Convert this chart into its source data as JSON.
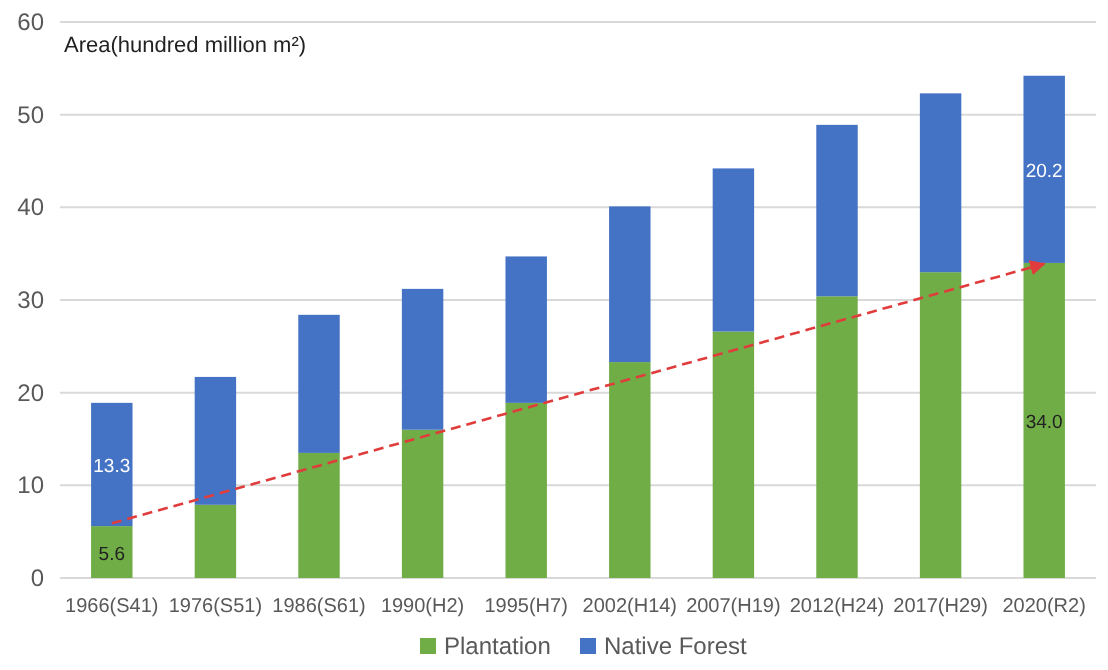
{
  "chart_data": {
    "type": "bar",
    "stacked": true,
    "ylabel": "Area(hundred million m²)",
    "categories": [
      "1966(S41)",
      "1976(S51)",
      "1986(S61)",
      "1990(H2)",
      "1995(H7)",
      "2002(H14)",
      "2007(H19)",
      "2012(H24)",
      "2017(H29)",
      "2020(R2)"
    ],
    "series": [
      {
        "name": "Plantation",
        "color": "#70ad47",
        "values": [
          5.6,
          7.9,
          13.5,
          16.0,
          18.9,
          23.3,
          26.6,
          30.4,
          33.0,
          34.0
        ],
        "value_labels": [
          "5.6",
          null,
          null,
          null,
          null,
          null,
          null,
          null,
          null,
          "34.0"
        ]
      },
      {
        "name": "Native Forest",
        "color": "#4472c4",
        "values": [
          13.3,
          13.8,
          14.9,
          15.2,
          15.8,
          16.8,
          17.6,
          18.5,
          19.3,
          20.2
        ],
        "value_labels": [
          "13.3",
          null,
          null,
          null,
          null,
          null,
          null,
          null,
          null,
          "20.2"
        ]
      },
      {
        "type": "line",
        "color": "#e03c3c",
        "line_style": "dashed",
        "values": [
          5.9,
          null,
          null,
          null,
          null,
          null,
          null,
          null,
          null,
          33.9
        ]
      }
    ],
    "ylim": [
      0,
      60
    ],
    "yticks": [
      0,
      10,
      20,
      30,
      40,
      50,
      60
    ],
    "grid": "y",
    "legend": "bottom"
  }
}
